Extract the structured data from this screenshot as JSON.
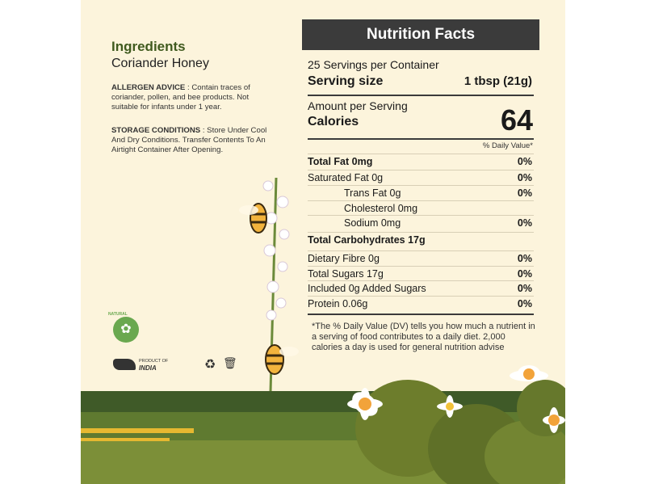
{
  "ingredients": {
    "title": "Ingredients",
    "name": "Coriander Honey",
    "allergen_label": "ALLERGEN ADVICE",
    "allergen_text": " : Contain traces of coriander, pollen, and bee products. Not suitable for infants under 1 year.",
    "storage_label": "STORAGE CONDITIONS",
    "storage_text": " : Store Under Cool And Dry Conditions. Transfer Contents To An Airtight Container After Opening."
  },
  "nutrition": {
    "title": "Nutrition Facts",
    "servings": "25 Servings per Container",
    "serving_size_label": "Serving size",
    "serving_size_value": "1 tbsp (21g)",
    "amount_label": "Amount per Serving",
    "calories_label": "Calories",
    "calories_value": "64",
    "dv_header": "% Daily Value*",
    "rows": [
      {
        "label": "Total Fat 0mg",
        "pct": "0%"
      },
      {
        "label": "Saturated Fat 0g",
        "pct": "0%"
      },
      {
        "label": "Trans Fat 0g",
        "pct": "0%"
      },
      {
        "label": "Cholesterol 0mg",
        "pct": ""
      },
      {
        "label": "Sodium 0mg",
        "pct": "0%"
      },
      {
        "label": "Total Carbohydrates 17g",
        "pct": ""
      },
      {
        "label": "Dietary Fibre 0g",
        "pct": "0%"
      },
      {
        "label": "Total Sugars 17g",
        "pct": "0%"
      },
      {
        "label": "Included 0g Added Sugars",
        "pct": "0%"
      },
      {
        "label": "Protein 0.06g",
        "pct": "0%"
      }
    ],
    "footnote": "*The % Daily Value (DV) tells you how much a nutrient in a serving of food contributes to a daily diet. 2,000 calories a day is used for general nutrition advise"
  },
  "badges": {
    "natural": "NATURAL",
    "product_of": "PRODUCT OF",
    "india": "INDIA"
  }
}
